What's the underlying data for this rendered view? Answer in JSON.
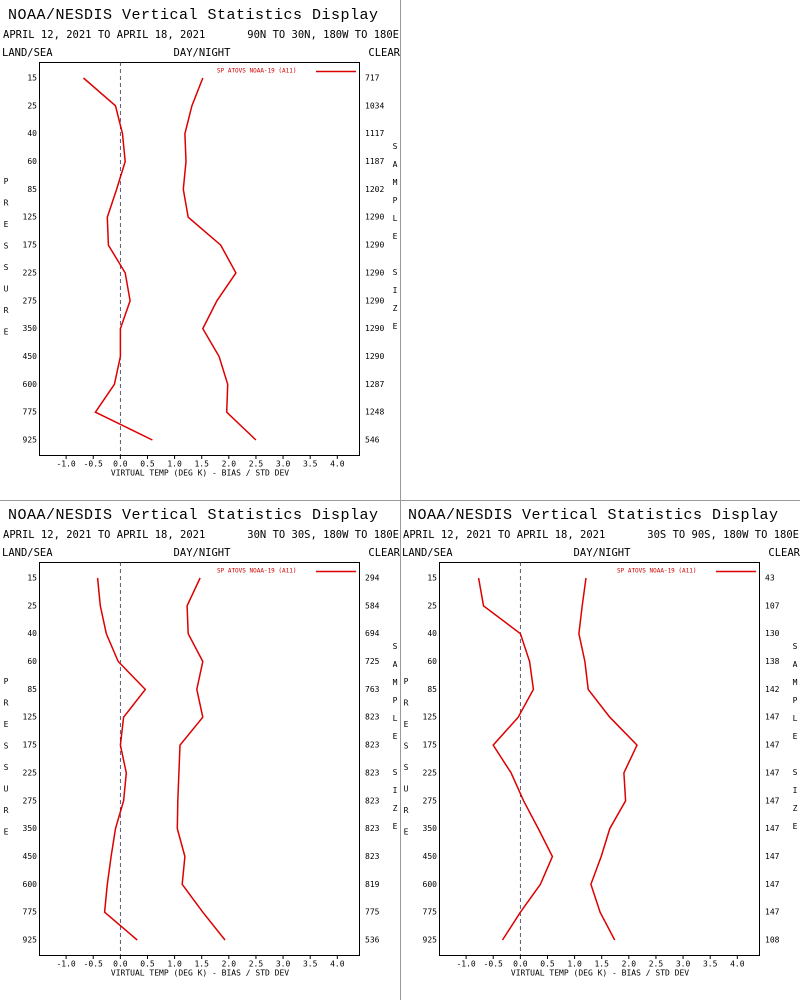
{
  "chart_data": [
    {
      "type": "line",
      "title": "NOAA/NESDIS Vertical Statistics Display",
      "subtitle": "APRIL 12, 2021 TO APRIL 18, 2021",
      "region": "90N TO 30N, 180W TO 180E",
      "left_header": "LAND/SEA",
      "center_header": "DAY/NIGHT",
      "right_header": "CLEAR",
      "legend": "SP ATOVS NOAA-19 (A11)",
      "xlabel": "VIRTUAL TEMP (DEG K) - BIAS / STD DEV",
      "ylabel": "PRESSURE",
      "y2label": "SAMPLE SIZE",
      "categories": [
        "15",
        "25",
        "40",
        "60",
        "85",
        "125",
        "175",
        "225",
        "275",
        "350",
        "450",
        "600",
        "775",
        "925"
      ],
      "sample_sizes": [
        717,
        1034,
        1117,
        1187,
        1202,
        1290,
        1290,
        1290,
        1290,
        1290,
        1290,
        1287,
        1248,
        546
      ],
      "series": [
        {
          "color": "#dd0000",
          "values": [
            -0.68,
            -0.09,
            0.04,
            0.09,
            -0.07,
            -0.24,
            -0.22,
            0.09,
            0.18,
            0.0,
            0.0,
            -0.11,
            -0.46,
            0.59
          ]
        },
        {
          "color": "#dd0000",
          "values": [
            1.52,
            1.32,
            1.19,
            1.21,
            1.16,
            1.25,
            1.85,
            2.13,
            1.78,
            1.52,
            1.82,
            1.98,
            1.96,
            2.5
          ]
        }
      ],
      "xlim": [
        -1.5,
        4.4
      ],
      "xticks": [
        {
          "value": -1,
          "label": "-1.0"
        },
        -0.5,
        {
          "value": 0,
          "label": "0.0"
        },
        0.5,
        {
          "value": 1,
          "label": "1.0"
        },
        1.5,
        {
          "value": 2,
          "label": "2.0"
        },
        2.5,
        {
          "value": 3,
          "label": "3.0"
        },
        3.5,
        {
          "value": 4,
          "label": "4.0"
        }
      ],
      "zero_line": true
    },
    {
      "type": "line",
      "title": "NOAA/NESDIS Vertical Statistics Display",
      "subtitle": "APRIL 12, 2021 TO APRIL 18, 2021",
      "region": "30N TO 30S, 180W TO 180E",
      "left_header": "LAND/SEA",
      "center_header": "DAY/NIGHT",
      "right_header": "CLEAR",
      "legend": "SP ATOVS NOAA-19 (A11)",
      "xlabel": "VIRTUAL TEMP (DEG K) - BIAS / STD DEV",
      "ylabel": "PRESSURE",
      "y2label": "SAMPLE SIZE",
      "categories": [
        "15",
        "25",
        "40",
        "60",
        "85",
        "125",
        "175",
        "225",
        "275",
        "350",
        "450",
        "600",
        "775",
        "925"
      ],
      "sample_sizes": [
        294,
        584,
        694,
        725,
        763,
        823,
        823,
        823,
        823,
        823,
        823,
        819,
        775,
        536
      ],
      "series": [
        {
          "color": "#dd0000",
          "values": [
            -0.42,
            -0.37,
            -0.26,
            -0.04,
            0.46,
            0.06,
            0.0,
            0.11,
            0.06,
            -0.09,
            -0.17,
            -0.24,
            -0.29,
            0.31
          ]
        },
        {
          "color": "#dd0000",
          "values": [
            1.47,
            1.23,
            1.25,
            1.52,
            1.41,
            1.52,
            1.1,
            1.08,
            1.06,
            1.05,
            1.19,
            1.14,
            1.52,
            1.93
          ]
        }
      ],
      "xlim": [
        -1.5,
        4.4
      ],
      "xticks": [
        {
          "value": -1,
          "label": "-1.0"
        },
        -0.5,
        {
          "value": 0,
          "label": "0.0"
        },
        0.5,
        {
          "value": 1,
          "label": "1.0"
        },
        1.5,
        {
          "value": 2,
          "label": "2.0"
        },
        2.5,
        {
          "value": 3,
          "label": "3.0"
        },
        3.5,
        {
          "value": 4,
          "label": "4.0"
        }
      ],
      "zero_line": true
    },
    {
      "type": "line",
      "title": "NOAA/NESDIS Vertical Statistics Display",
      "subtitle": "APRIL 12, 2021 TO APRIL 18, 2021",
      "region": "30S TO 90S, 180W TO 180E",
      "left_header": "LAND/SEA",
      "center_header": "DAY/NIGHT",
      "right_header": "CLEAR",
      "legend": "SP ATOVS NOAA-19 (A11)",
      "xlabel": "VIRTUAL TEMP (DEG K) - BIAS / STD DEV",
      "ylabel": "PRESSURE",
      "y2label": "SAMPLE SIZE",
      "categories": [
        "15",
        "25",
        "40",
        "60",
        "85",
        "125",
        "175",
        "225",
        "275",
        "350",
        "450",
        "600",
        "775",
        "925"
      ],
      "sample_sizes": [
        43,
        107,
        130,
        138,
        142,
        147,
        147,
        147,
        147,
        147,
        147,
        147,
        147,
        108
      ],
      "series": [
        {
          "color": "#dd0000",
          "values": [
            -0.77,
            -0.68,
            0.0,
            0.17,
            0.24,
            -0.04,
            -0.5,
            -0.17,
            0.06,
            0.33,
            0.59,
            0.37,
            0.0,
            -0.33
          ]
        },
        {
          "color": "#dd0000",
          "values": [
            1.21,
            1.14,
            1.08,
            1.19,
            1.25,
            1.65,
            2.15,
            1.91,
            1.94,
            1.65,
            1.49,
            1.3,
            1.47,
            1.74
          ]
        }
      ],
      "xlim": [
        -1.5,
        4.4
      ],
      "xticks": [
        {
          "value": -1,
          "label": "-1.0"
        },
        -0.5,
        {
          "value": 0,
          "label": "0.0"
        },
        0.5,
        {
          "value": 1,
          "label": "1.0"
        },
        1.5,
        {
          "value": 2,
          "label": "2.0"
        },
        2.5,
        {
          "value": 3,
          "label": "3.0"
        },
        3.5,
        {
          "value": 4,
          "label": "4.0"
        }
      ],
      "zero_line": true
    }
  ]
}
